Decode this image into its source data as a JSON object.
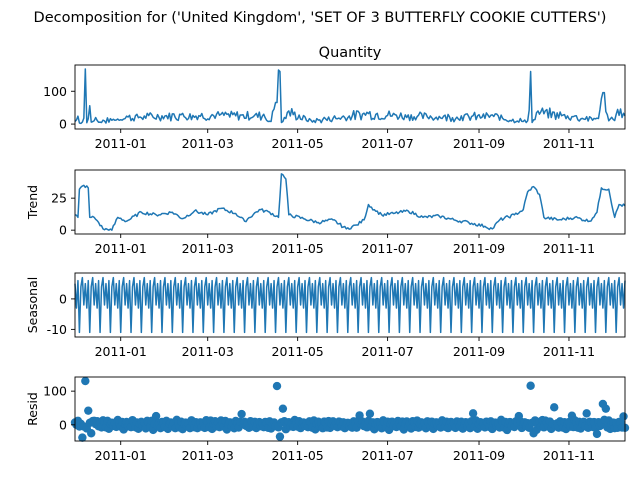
{
  "figure_title": "Decomposition for ('United Kingdom', 'SET OF 3 BUTTERFLY COOKIE CUTTERS')",
  "x_tick_labels": [
    "2011-01",
    "2011-03",
    "2011-05",
    "2011-07",
    "2011-09",
    "2011-11"
  ],
  "colors": {
    "series": "#1f77b4",
    "axis": "#000000"
  },
  "chart_data": [
    {
      "type": "line",
      "title": "Quantity",
      "ylabel": "",
      "ylim": [
        -15,
        180
      ],
      "yticks": [
        0,
        100
      ],
      "x_range": [
        "2010-12-01",
        "2011-12-09"
      ],
      "anchors": [
        [
          "2010-12-01",
          8
        ],
        [
          "2010-12-03",
          24
        ],
        [
          "2010-12-05",
          2
        ],
        [
          "2010-12-07",
          18
        ],
        [
          "2010-12-08",
          168
        ],
        [
          "2010-12-09",
          4
        ],
        [
          "2010-12-11",
          56
        ],
        [
          "2010-12-12",
          6
        ],
        [
          "2010-12-15",
          20
        ],
        [
          "2010-12-18",
          6
        ],
        [
          "2010-12-20",
          12
        ],
        [
          "2011-01-05",
          24
        ],
        [
          "2011-01-20",
          26
        ],
        [
          "2011-02-10",
          30
        ],
        [
          "2011-03-10",
          30
        ],
        [
          "2011-04-08",
          30
        ],
        [
          "2011-04-13",
          8
        ],
        [
          "2011-04-19",
          160
        ],
        [
          "2011-04-20",
          5
        ],
        [
          "2011-04-22",
          20
        ],
        [
          "2011-04-25",
          40
        ],
        [
          "2011-05-10",
          12
        ],
        [
          "2011-06-17",
          36
        ],
        [
          "2011-07-15",
          28
        ],
        [
          "2011-08-20",
          25
        ],
        [
          "2011-09-10",
          28
        ],
        [
          "2011-10-04",
          10
        ],
        [
          "2011-10-06",
          160
        ],
        [
          "2011-10-07",
          5
        ],
        [
          "2011-10-11",
          40
        ],
        [
          "2011-11-05",
          25
        ],
        [
          "2011-11-20",
          18
        ],
        [
          "2011-11-25",
          96
        ],
        [
          "2011-11-28",
          10
        ],
        [
          "2011-12-06",
          46
        ],
        [
          "2011-12-09",
          25
        ]
      ]
    },
    {
      "type": "line",
      "title": "",
      "ylabel": "Trend",
      "ylim": [
        -3,
        47
      ],
      "yticks": [
        0,
        25
      ],
      "x_range": [
        "2010-12-01",
        "2011-12-09"
      ],
      "anchors": [
        [
          "2010-12-01",
          12
        ],
        [
          "2010-12-03",
          10
        ],
        [
          "2010-12-04",
          32
        ],
        [
          "2010-12-07",
          35
        ],
        [
          "2010-12-10",
          33
        ],
        [
          "2010-12-11",
          10
        ],
        [
          "2010-12-14",
          10
        ],
        [
          "2010-12-17",
          6
        ],
        [
          "2010-12-20",
          1
        ],
        [
          "2010-12-26",
          0
        ],
        [
          "2010-12-30",
          10
        ],
        [
          "2011-01-05",
          7
        ],
        [
          "2011-01-15",
          14
        ],
        [
          "2011-01-25",
          12
        ],
        [
          "2011-02-05",
          14
        ],
        [
          "2011-02-12",
          9
        ],
        [
          "2011-02-20",
          15
        ],
        [
          "2011-03-01",
          12
        ],
        [
          "2011-03-10",
          17
        ],
        [
          "2011-03-20",
          13
        ],
        [
          "2011-03-26",
          7
        ],
        [
          "2011-04-05",
          16
        ],
        [
          "2011-04-12",
          14
        ],
        [
          "2011-04-18",
          10
        ],
        [
          "2011-04-20",
          44
        ],
        [
          "2011-04-23",
          40
        ],
        [
          "2011-04-25",
          12
        ],
        [
          "2011-05-05",
          9
        ],
        [
          "2011-05-15",
          6
        ],
        [
          "2011-05-25",
          8
        ],
        [
          "2011-06-03",
          1
        ],
        [
          "2011-06-10",
          4
        ],
        [
          "2011-06-15",
          8
        ],
        [
          "2011-06-18",
          20
        ],
        [
          "2011-06-22",
          16
        ],
        [
          "2011-06-27",
          12
        ],
        [
          "2011-07-05",
          13
        ],
        [
          "2011-07-15",
          15
        ],
        [
          "2011-07-25",
          10
        ],
        [
          "2011-08-05",
          11
        ],
        [
          "2011-08-15",
          8
        ],
        [
          "2011-08-25",
          6
        ],
        [
          "2011-09-05",
          3
        ],
        [
          "2011-09-10",
          1
        ],
        [
          "2011-09-15",
          8
        ],
        [
          "2011-09-25",
          12
        ],
        [
          "2011-10-01",
          16
        ],
        [
          "2011-10-04",
          30
        ],
        [
          "2011-10-08",
          34
        ],
        [
          "2011-10-12",
          28
        ],
        [
          "2011-10-15",
          10
        ],
        [
          "2011-10-25",
          8
        ],
        [
          "2011-11-05",
          10
        ],
        [
          "2011-11-15",
          7
        ],
        [
          "2011-11-20",
          14
        ],
        [
          "2011-11-23",
          33
        ],
        [
          "2011-11-28",
          32
        ],
        [
          "2011-12-02",
          10
        ],
        [
          "2011-12-05",
          20
        ],
        [
          "2011-12-09",
          19
        ]
      ]
    },
    {
      "type": "line",
      "title": "",
      "ylabel": "Seasonal",
      "ylim": [
        -12.5,
        8.5
      ],
      "yticks": [
        -10,
        0
      ],
      "x_range": [
        "2010-12-01",
        "2011-12-09"
      ],
      "pattern": [
        5,
        -3,
        6,
        -11,
        4,
        7,
        -2
      ],
      "pattern_step_days": 1
    },
    {
      "type": "scatter",
      "title": "",
      "ylabel": "Resid",
      "ylim": [
        -48,
        142
      ],
      "yticks": [
        0,
        100
      ],
      "x_range": [
        "2010-12-01",
        "2011-12-09"
      ],
      "outliers": [
        [
          "2010-12-02",
          0
        ],
        [
          "2010-12-04",
          -5
        ],
        [
          "2010-12-06",
          -38
        ],
        [
          "2010-12-08",
          130
        ],
        [
          "2010-12-10",
          42
        ],
        [
          "2010-12-12",
          -25
        ],
        [
          "2010-12-14",
          12
        ],
        [
          "2011-01-25",
          26
        ],
        [
          "2011-03-24",
          32
        ],
        [
          "2011-04-17",
          115
        ],
        [
          "2011-04-19",
          -35
        ],
        [
          "2011-04-21",
          48
        ],
        [
          "2011-06-12",
          28
        ],
        [
          "2011-06-19",
          33
        ],
        [
          "2011-08-28",
          34
        ],
        [
          "2011-09-28",
          26
        ],
        [
          "2011-10-06",
          116
        ],
        [
          "2011-10-08",
          -25
        ],
        [
          "2011-10-14",
          14
        ],
        [
          "2011-10-22",
          52
        ],
        [
          "2011-11-03",
          27
        ],
        [
          "2011-11-13",
          34
        ],
        [
          "2011-11-20",
          -27
        ],
        [
          "2011-11-24",
          62
        ],
        [
          "2011-11-26",
          48
        ],
        [
          "2011-12-02",
          -10
        ],
        [
          "2011-12-08",
          25
        ]
      ],
      "base_pattern": [
        8,
        -8,
        12,
        -14,
        3,
        10,
        -5,
        6,
        -10,
        14
      ]
    }
  ]
}
